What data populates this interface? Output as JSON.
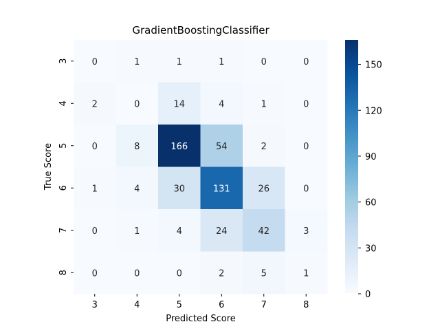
{
  "chart_data": {
    "type": "heatmap",
    "title": "GradientBoostingClassifier",
    "xlabel": "Predicted Score",
    "ylabel": "True Score",
    "x_categories": [
      "3",
      "4",
      "5",
      "6",
      "7",
      "8"
    ],
    "y_categories": [
      "3",
      "4",
      "5",
      "6",
      "7",
      "8"
    ],
    "values": [
      [
        0,
        1,
        1,
        1,
        0,
        0
      ],
      [
        2,
        0,
        14,
        4,
        1,
        0
      ],
      [
        0,
        8,
        166,
        54,
        2,
        0
      ],
      [
        1,
        4,
        30,
        131,
        26,
        0
      ],
      [
        0,
        1,
        4,
        24,
        42,
        3
      ],
      [
        0,
        0,
        0,
        2,
        5,
        1
      ]
    ],
    "colormap": "Blues",
    "vmin": 0,
    "vmax": 166,
    "colorbar_ticks": [
      0,
      30,
      60,
      90,
      120,
      150
    ],
    "annotations": true,
    "colors": {
      "text_light": "#ffffff",
      "text_dark": "#262626",
      "axis": "#000000"
    }
  }
}
